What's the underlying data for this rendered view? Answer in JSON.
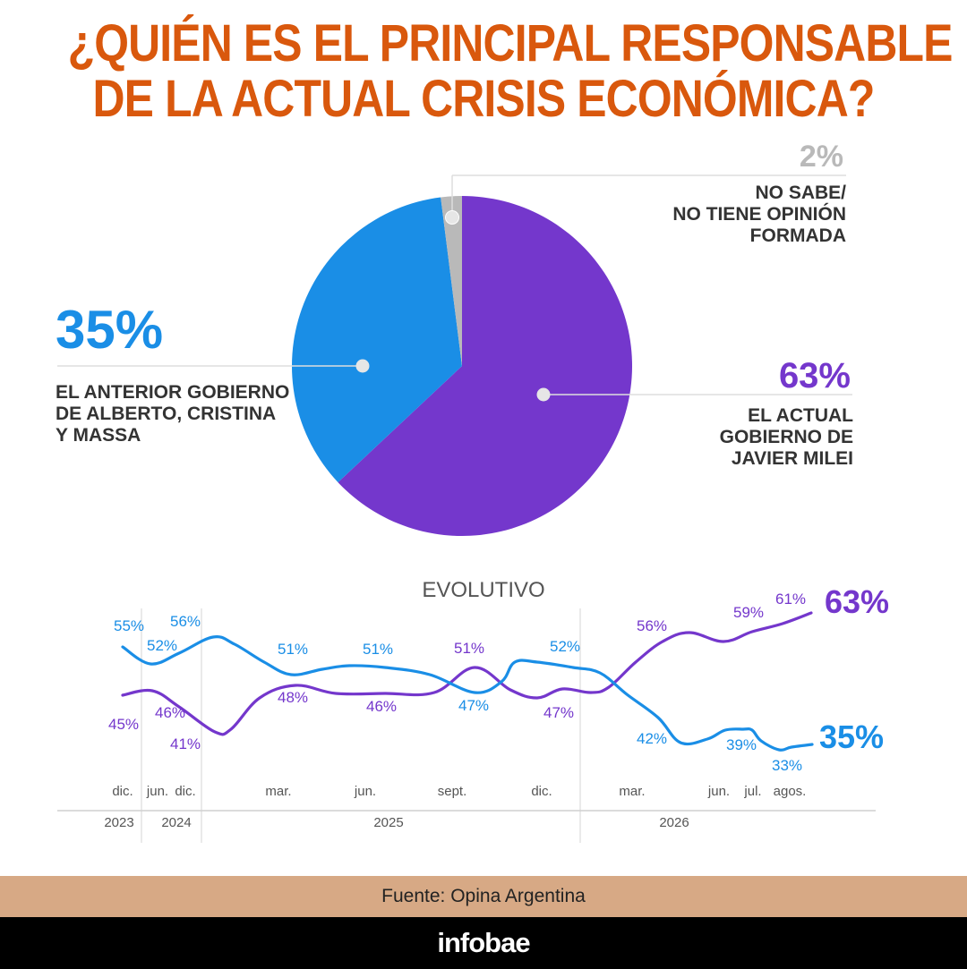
{
  "title": {
    "line1": "¿QUIÉN ES EL PRINCIPAL RESPONSABLE",
    "line2": "DE LA ACTUAL CRISIS ECONÓMICA?"
  },
  "colors": {
    "title": "#d9580d",
    "milei": "#7437cc",
    "anterior": "#1a8ee6",
    "no_sabe": "#b9b9b9",
    "source_bar": "#d7a985",
    "brand_bar": "#000000"
  },
  "chart_data": [
    {
      "type": "pie",
      "title": "",
      "slices": [
        {
          "key": "milei",
          "value": 63,
          "label": "63%",
          "lines": [
            "EL ACTUAL",
            "GOBIERNO DE",
            "JAVIER MILEI"
          ],
          "color": "#7437cc"
        },
        {
          "key": "anterior",
          "value": 35,
          "label": "35%",
          "lines": [
            "EL ANTERIOR GOBIERNO",
            "DE ALBERTO, CRISTINA",
            "Y MASSA"
          ],
          "color": "#1a8ee6"
        },
        {
          "key": "no_sabe",
          "value": 2,
          "label": "2%",
          "lines": [
            "NO SABE/",
            "NO TIENE OPINIÓN",
            "FORMADA"
          ],
          "color": "#b9b9b9"
        }
      ]
    },
    {
      "type": "line",
      "title": "EVOLUTIVO",
      "x_ticks": [
        "dic.",
        "jun.",
        "dic.",
        "mar.",
        "jun.",
        "sept.",
        "dic.",
        "mar.",
        "jun.",
        "jul.",
        "agos."
      ],
      "years": [
        "2023",
        "2024",
        "2025",
        "2026"
      ],
      "ylim": [
        25,
        70
      ],
      "series": [
        {
          "key": "milei",
          "color": "#7437cc",
          "points": [
            {
              "date": "2023-12",
              "value": 45,
              "label": "45%"
            },
            {
              "date": "2024-06",
              "value": 46,
              "label": "46%"
            },
            {
              "date": "2024-12",
              "value": 41,
              "label": "41%"
            },
            {
              "date": "2025-03",
              "value": 48,
              "label": "48%"
            },
            {
              "date": "2025-06",
              "value": 46,
              "label": "46%"
            },
            {
              "date": "2025-09",
              "value": 51,
              "label": "51%"
            },
            {
              "date": "2025-12",
              "value": 47,
              "label": "47%"
            },
            {
              "date": "2026-03",
              "value": 56,
              "label": "56%"
            },
            {
              "date": "2026-06",
              "value": 59,
              "label": "59%"
            },
            {
              "date": "2026-07",
              "value": 61,
              "label": "61%"
            },
            {
              "date": "2026-08",
              "value": 63,
              "label": "63%"
            }
          ]
        },
        {
          "key": "anterior",
          "color": "#1a8ee6",
          "points": [
            {
              "date": "2023-12",
              "value": 55,
              "label": "55%"
            },
            {
              "date": "2024-06",
              "value": 52,
              "label": "52%"
            },
            {
              "date": "2024-12",
              "value": 56,
              "label": "56%"
            },
            {
              "date": "2025-03",
              "value": 51,
              "label": "51%"
            },
            {
              "date": "2025-06",
              "value": 51,
              "label": "51%"
            },
            {
              "date": "2025-09",
              "value": 47,
              "label": "47%"
            },
            {
              "date": "2025-12",
              "value": 52,
              "label": "52%"
            },
            {
              "date": "2026-03",
              "value": 42,
              "label": "42%"
            },
            {
              "date": "2026-06",
              "value": 39,
              "label": "39%"
            },
            {
              "date": "2026-07",
              "value": 33,
              "label": "33%"
            },
            {
              "date": "2026-08",
              "value": 35,
              "label": "35%"
            }
          ]
        }
      ]
    }
  ],
  "footer": {
    "source": "Fuente: Opina Argentina",
    "brand": "infobae"
  }
}
